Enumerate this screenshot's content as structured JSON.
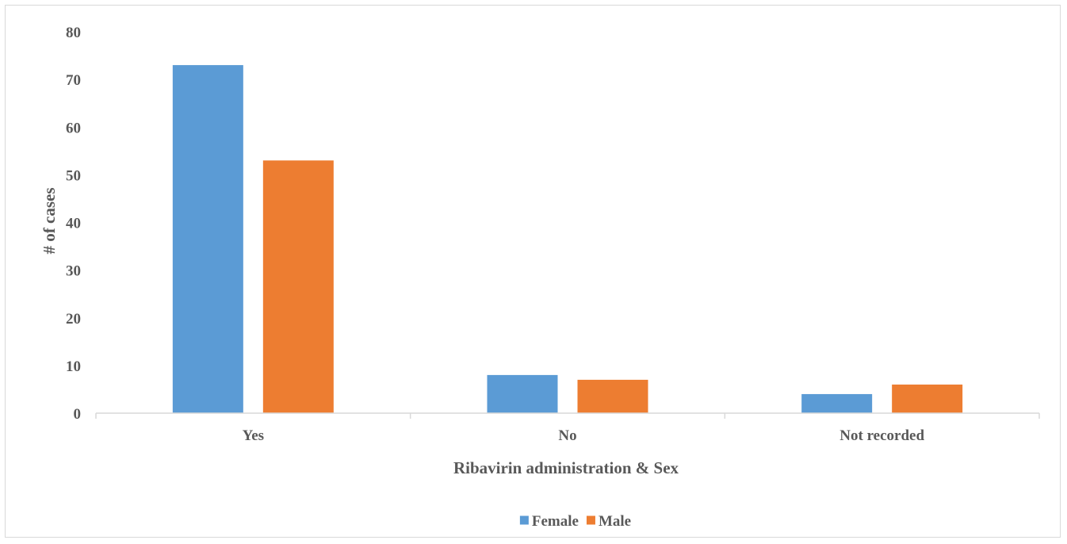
{
  "chart_data": {
    "type": "bar",
    "title": "",
    "xlabel": "Ribavirin administration & Sex",
    "ylabel": "# of cases",
    "categories": [
      "Yes",
      "No",
      "Not recorded"
    ],
    "series": [
      {
        "name": "Female",
        "values": [
          73,
          8,
          4
        ],
        "color": "#5b9bd5"
      },
      {
        "name": "Male",
        "values": [
          53,
          7,
          6
        ],
        "color": "#ed7d31"
      }
    ],
    "ylim": [
      0,
      80
    ],
    "yticks": [
      0,
      10,
      20,
      30,
      40,
      50,
      60,
      70,
      80
    ],
    "grid": false,
    "legend_position": "bottom",
    "axis_color": "#d9d9d9"
  }
}
